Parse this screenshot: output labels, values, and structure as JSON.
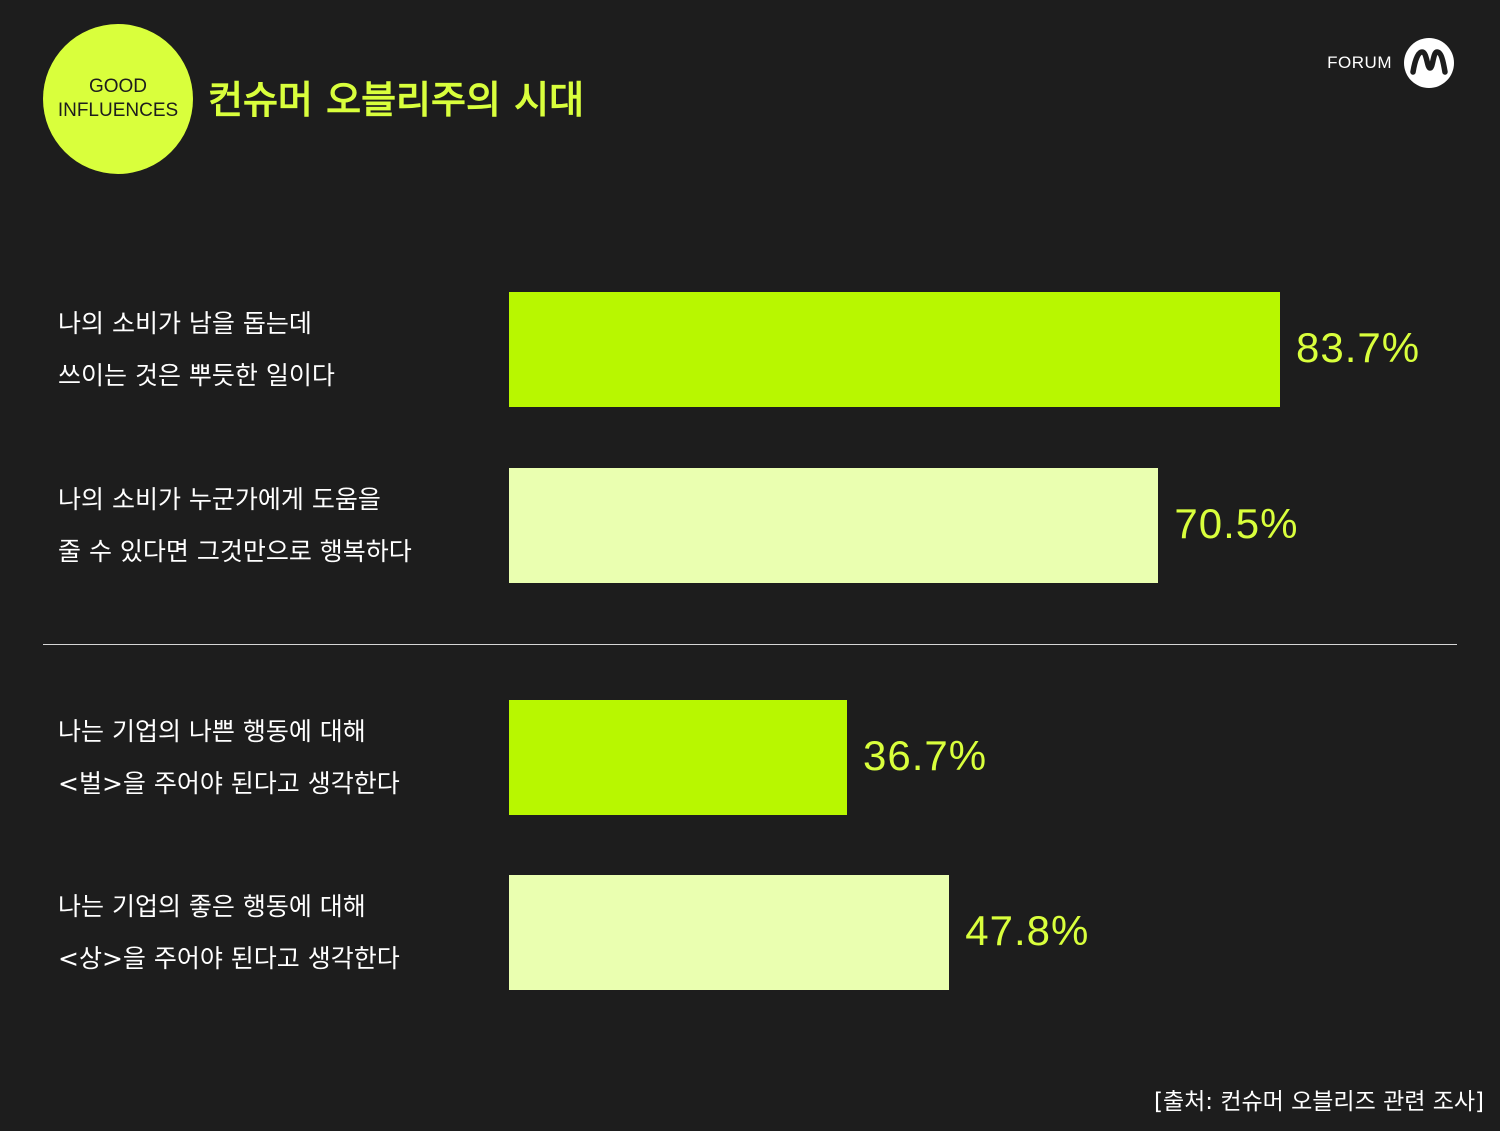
{
  "badge": {
    "line1": "GOOD",
    "line2": "INFLUENCES"
  },
  "title": "컨슈머 오블리주의 시대",
  "brand": {
    "text": "FORUM",
    "logo_icon": "forum-m-logo-icon"
  },
  "colors": {
    "accent": "#d9ff3c",
    "bar_dark": "#b8f700",
    "bar_light": "#eaffb0",
    "background": "#1d1d1d"
  },
  "source": "[출처: 컨슈머 오블리즈 관련 조사]",
  "chart_data": {
    "type": "bar",
    "orientation": "horizontal",
    "unit": "%",
    "xlim": [
      0,
      100
    ],
    "grid": false,
    "categories": [
      [
        "나의 소비가 남을 돕는데",
        "쓰이는 것은 뿌듯한 일이다"
      ],
      [
        "나의 소비가 누군가에게 도움을",
        "줄 수 있다면 그것만으로 행복하다"
      ],
      [
        "나는 기업의 나쁜 행동에 대해",
        "<벌>을 주어야 된다고 생각한다"
      ],
      [
        "나는 기업의 좋은 행동에 대해",
        "<상>을 주어야 된다고 생각한다"
      ]
    ],
    "values": [
      83.7,
      70.5,
      36.7,
      47.8
    ],
    "value_labels": [
      "83.7%",
      "70.5%",
      "36.7%",
      "47.8%"
    ],
    "bar_colors": [
      "#b8f700",
      "#eaffb0",
      "#b8f700",
      "#eaffb0"
    ]
  }
}
